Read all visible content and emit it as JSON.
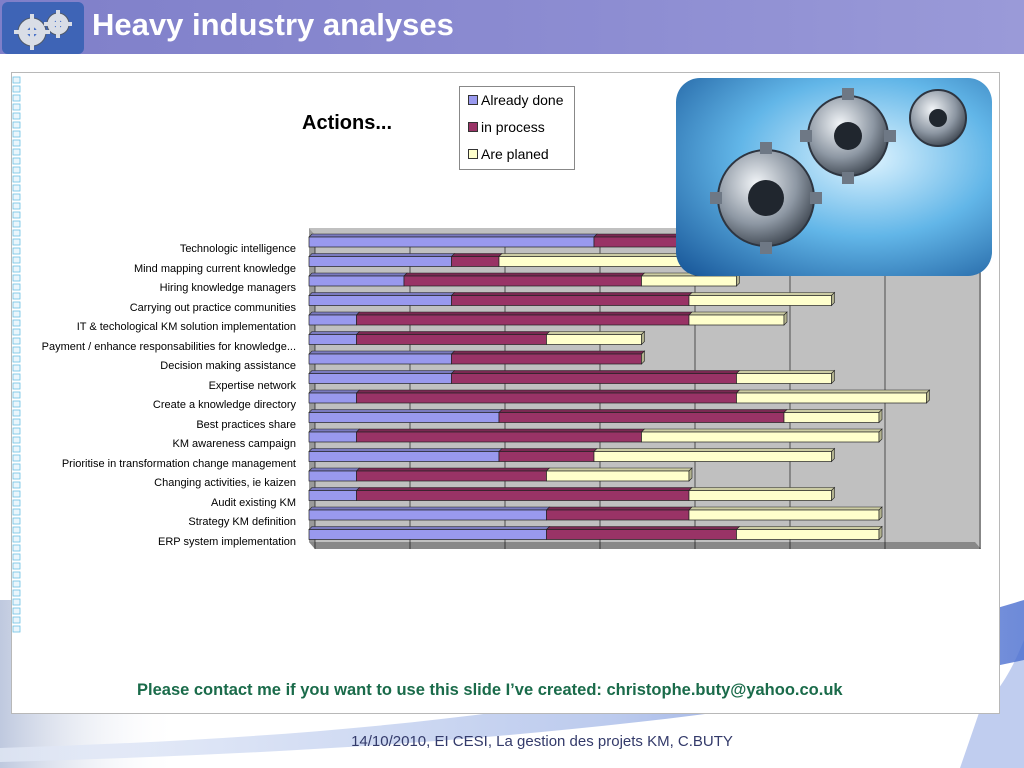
{
  "header": {
    "title": "Heavy industry analyses"
  },
  "logo": {
    "icon": "gears-logo-icon"
  },
  "photo": {
    "icon": "gears-photo-icon"
  },
  "colors": {
    "header_bg": "#8585cd",
    "already_done": "#9999ee",
    "in_process": "#993366",
    "are_planed": "#ffffcc",
    "contact_text": "#1a6b4a"
  },
  "chart_data": {
    "type": "bar",
    "orientation": "horizontal",
    "stacked": true,
    "title": "Actions...",
    "categories": [
      "Technologic intelligence",
      "Mind mapping current knowledge",
      "Hiring knowledge managers",
      "Carrying out practice communities",
      "IT & techological KM solution implementation",
      "Payment / enhance responsabilities for knowledge...",
      "Decision making assistance",
      "Expertise network",
      "Create a knowledge directory",
      "Best practices share",
      "KM awareness campaign",
      "Prioritise in transformation change management",
      "Changing activities, ie kaizen",
      "Audit existing KM",
      "Strategy KM definition",
      "ERP system implementation"
    ],
    "series": [
      {
        "name": "Already done",
        "values": [
          6,
          3,
          2,
          3,
          1,
          1,
          3,
          3,
          1,
          4,
          1,
          4,
          1,
          1,
          5,
          5
        ]
      },
      {
        "name": "in process",
        "values": [
          3,
          1,
          5,
          5,
          7,
          4,
          4,
          6,
          8,
          6,
          6,
          2,
          4,
          7,
          3,
          4
        ]
      },
      {
        "name": "Are planed",
        "values": [
          3,
          4,
          2,
          3,
          2,
          2,
          0,
          2,
          4,
          2,
          5,
          5,
          3,
          3,
          4,
          3
        ]
      }
    ],
    "xlim": [
      0,
      14
    ],
    "grid": true,
    "legend_position": "top"
  },
  "contact": "Please contact me if you want to use this slide I’ve created: christophe.buty@yahoo.co.uk",
  "footer": "14/10/2010, EI CESI, La gestion des projets KM, C.BUTY"
}
